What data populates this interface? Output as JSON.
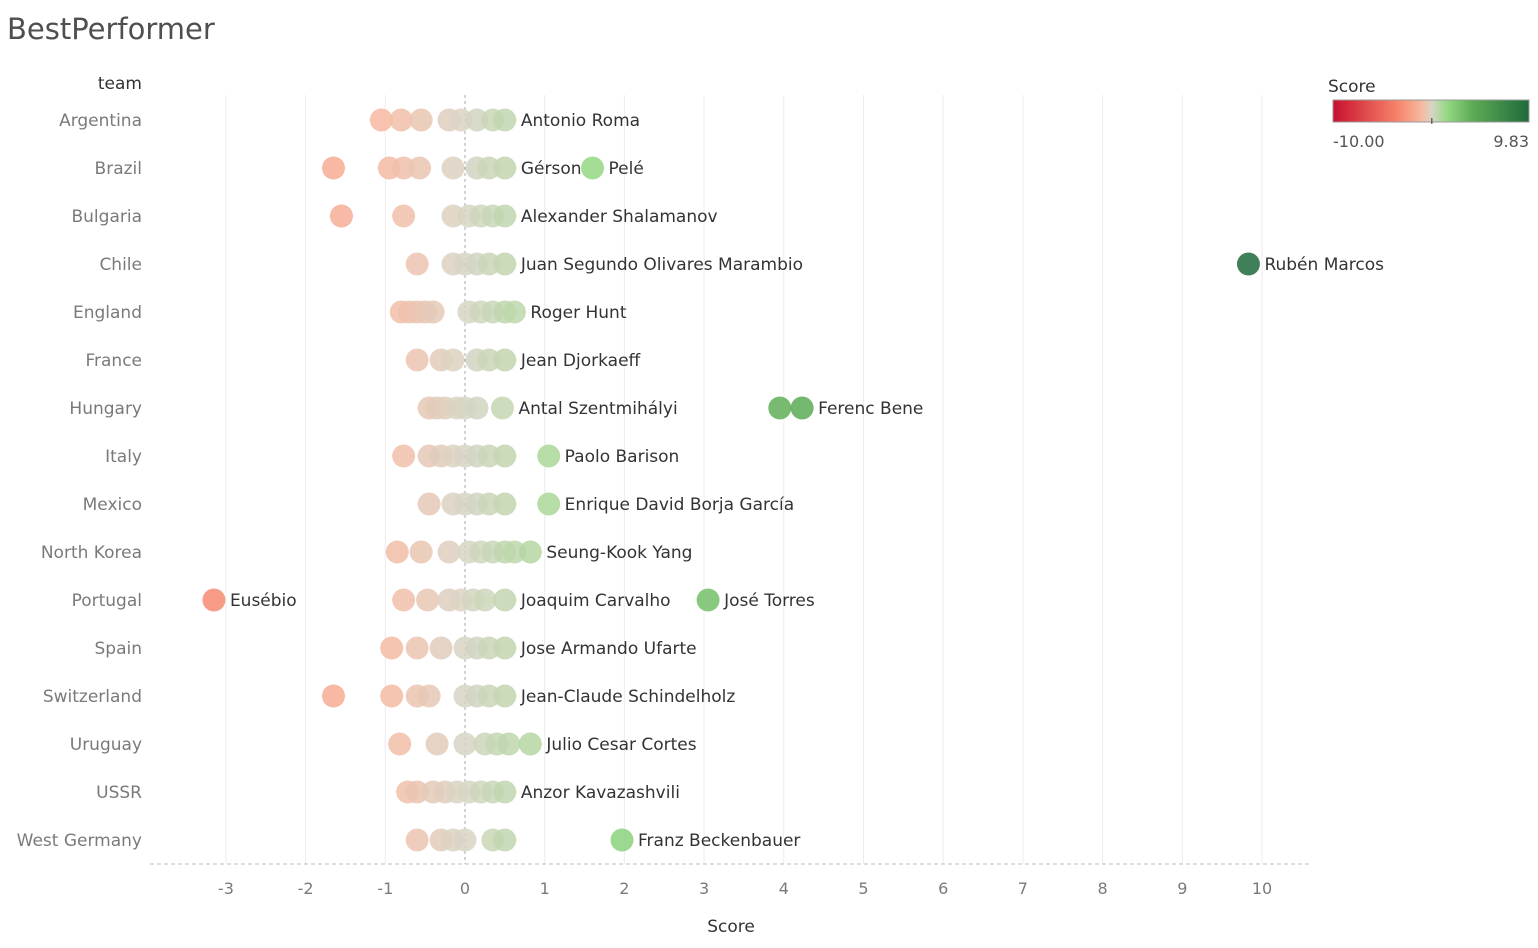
{
  "title": "BestPerformer",
  "chart_data": {
    "type": "scatter",
    "title": "BestPerformer",
    "row_header": "team",
    "xlabel": "Score",
    "xlim": [
      -3.8,
      10.6
    ],
    "x_ticks": [
      -3,
      -2,
      -1,
      0,
      1,
      2,
      3,
      4,
      5,
      6,
      7,
      8,
      9,
      10
    ],
    "grid": "vertical",
    "reference_line": 0,
    "teams": [
      "Argentina",
      "Brazil",
      "Bulgaria",
      "Chile",
      "England",
      "France",
      "Hungary",
      "Italy",
      "Mexico",
      "North Korea",
      "Portugal",
      "Spain",
      "Switzerland",
      "Uruguay",
      "USSR",
      "West Germany"
    ],
    "series": [
      {
        "team": "Argentina",
        "values": [
          -1.05,
          -0.8,
          -0.55,
          -0.2,
          -0.05,
          0.15,
          0.35,
          0.5
        ],
        "labels": [
          {
            "text": "Antonio Roma",
            "x": 0.5
          }
        ]
      },
      {
        "team": "Brazil",
        "values": [
          -1.65,
          -0.95,
          -0.77,
          -0.57,
          -0.15,
          0.15,
          0.3,
          0.5,
          1.6
        ],
        "labels": [
          {
            "text": "Gérson",
            "x": 0.5
          },
          {
            "text": "Pelé",
            "x": 1.6
          }
        ]
      },
      {
        "team": "Bulgaria",
        "values": [
          -1.55,
          -0.77,
          -0.15,
          0.05,
          0.2,
          0.35,
          0.5
        ],
        "labels": [
          {
            "text": "Alexander Shalamanov",
            "x": 0.5
          }
        ]
      },
      {
        "team": "Chile",
        "values": [
          -0.6,
          -0.15,
          0.0,
          0.15,
          0.3,
          0.5,
          9.83
        ],
        "labels": [
          {
            "text": "Juan Segundo Olivares Marambio",
            "x": 0.5
          },
          {
            "text": "Rubén Marcos",
            "x": 9.83
          }
        ]
      },
      {
        "team": "England",
        "values": [
          -0.8,
          -0.7,
          -0.6,
          -0.5,
          -0.4,
          0.05,
          0.2,
          0.35,
          0.5,
          0.62
        ],
        "labels": [
          {
            "text": "Roger Hunt",
            "x": 0.62
          }
        ]
      },
      {
        "team": "France",
        "values": [
          -0.6,
          -0.3,
          -0.15,
          0.15,
          0.3,
          0.5
        ],
        "labels": [
          {
            "text": "Jean Djorkaeff",
            "x": 0.5
          }
        ]
      },
      {
        "team": "Hungary",
        "values": [
          -0.45,
          -0.35,
          -0.25,
          -0.1,
          0.0,
          0.15,
          0.47,
          3.95,
          4.23
        ],
        "labels": [
          {
            "text": "Antal Szentmihályi",
            "x": 0.47
          },
          {
            "text": "Ferenc Bene",
            "x": 4.23
          }
        ]
      },
      {
        "team": "Italy",
        "values": [
          -0.77,
          -0.45,
          -0.3,
          -0.15,
          0.0,
          0.15,
          0.3,
          0.5,
          1.05
        ],
        "labels": [
          {
            "text": "Paolo Barison",
            "x": 1.05
          }
        ]
      },
      {
        "team": "Mexico",
        "values": [
          -0.45,
          -0.15,
          0.0,
          0.15,
          0.3,
          0.5,
          1.05
        ],
        "labels": [
          {
            "text": "Enrique David Borja García",
            "x": 1.05
          }
        ]
      },
      {
        "team": "North Korea",
        "values": [
          -0.85,
          -0.55,
          -0.2,
          0.05,
          0.2,
          0.35,
          0.5,
          0.62,
          0.82
        ],
        "labels": [
          {
            "text": "Seung-Kook Yang",
            "x": 0.82
          }
        ]
      },
      {
        "team": "Portugal",
        "values": [
          -3.15,
          -0.77,
          -0.47,
          -0.2,
          -0.05,
          0.1,
          0.25,
          0.5,
          3.05
        ],
        "labels": [
          {
            "text": "Eusébio",
            "x": -3.15
          },
          {
            "text": "Joaquim Carvalho",
            "x": 0.5
          },
          {
            "text": "José Torres",
            "x": 3.05
          }
        ]
      },
      {
        "team": "Spain",
        "values": [
          -0.92,
          -0.6,
          -0.3,
          0.0,
          0.15,
          0.3,
          0.5
        ],
        "labels": [
          {
            "text": "Jose Armando Ufarte",
            "x": 0.5
          }
        ]
      },
      {
        "team": "Switzerland",
        "values": [
          -1.65,
          -0.92,
          -0.6,
          -0.45,
          0.0,
          0.15,
          0.3,
          0.5
        ],
        "labels": [
          {
            "text": "Jean-Claude Schindelholz",
            "x": 0.5
          }
        ]
      },
      {
        "team": "Uruguay",
        "values": [
          -0.82,
          -0.35,
          0.0,
          0.25,
          0.4,
          0.55,
          0.82
        ],
        "labels": [
          {
            "text": "Julio Cesar Cortes",
            "x": 0.82
          }
        ]
      },
      {
        "team": "USSR",
        "values": [
          -0.72,
          -0.6,
          -0.4,
          -0.25,
          -0.1,
          0.05,
          0.2,
          0.35,
          0.5
        ],
        "labels": [
          {
            "text": "Anzor Kavazashvili",
            "x": 0.5
          }
        ]
      },
      {
        "team": "West Germany",
        "values": [
          -0.6,
          -0.3,
          -0.15,
          0.0,
          0.35,
          0.5,
          1.97
        ],
        "labels": [
          {
            "text": "Franz Beckenbauer",
            "x": 1.97
          }
        ]
      }
    ],
    "color_legend": {
      "title": "Score",
      "min": -10.0,
      "max": 9.83,
      "min_label": "-10.00",
      "max_label": "9.83",
      "stops": [
        {
          "value": -10.0,
          "color": "#c8102e"
        },
        {
          "value": -3.5,
          "color": "#f6836a"
        },
        {
          "value": -1.0,
          "color": "#f7b9a2"
        },
        {
          "value": 0.0,
          "color": "#d8d5c5"
        },
        {
          "value": 1.5,
          "color": "#96d985"
        },
        {
          "value": 4.0,
          "color": "#5fad56"
        },
        {
          "value": 9.83,
          "color": "#1e6a3b"
        }
      ]
    }
  }
}
